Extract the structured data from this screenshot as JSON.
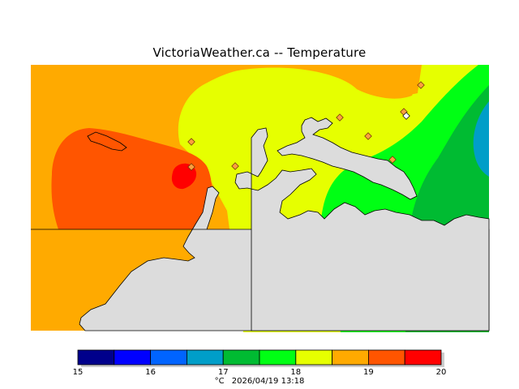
{
  "title": "VictoriaWeather.ca -- Temperature",
  "legend": {
    "colors": [
      "#00008b",
      "#0000ff",
      "#0064ff",
      "#009ec8",
      "#00bb32",
      "#00ff14",
      "#e6ff00",
      "#ffaa00",
      "#ff5500",
      "#ff0000"
    ],
    "ticks": [
      "15",
      "16",
      "17",
      "18",
      "19",
      "20"
    ],
    "unit": "°C",
    "timestamp": "2026/04/19 13:18"
  },
  "colors": {
    "land": "#dcdcdc",
    "coast": "#000000",
    "station": "#ff9f40"
  },
  "stations": {
    "count": 9
  }
}
